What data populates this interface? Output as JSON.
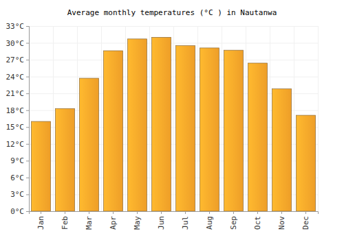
{
  "chart_data": {
    "type": "bar",
    "title": "Average monthly temperatures (°C ) in Nautanwa",
    "categories": [
      "Jan",
      "Feb",
      "Mar",
      "Apr",
      "May",
      "Jun",
      "Jul",
      "Aug",
      "Sep",
      "Oct",
      "Nov",
      "Dec"
    ],
    "values": [
      16.0,
      18.3,
      23.7,
      28.6,
      30.7,
      31.0,
      29.5,
      29.1,
      28.7,
      26.4,
      21.8,
      17.1
    ],
    "color": "#fba72a",
    "ylim": [
      0,
      33
    ],
    "yticks": [
      {
        "value": 0,
        "label": "0°C"
      },
      {
        "value": 3,
        "label": "3°C"
      },
      {
        "value": 6,
        "label": "6°C"
      },
      {
        "value": 9,
        "label": "9°C"
      },
      {
        "value": 12,
        "label": "12°C"
      },
      {
        "value": 15,
        "label": "15°C"
      },
      {
        "value": 18,
        "label": "18°C"
      },
      {
        "value": 21,
        "label": "21°C"
      },
      {
        "value": 24,
        "label": "24°C"
      },
      {
        "value": 27,
        "label": "27°C"
      },
      {
        "value": 30,
        "label": "30°C"
      },
      {
        "value": 33,
        "label": "33°C"
      }
    ],
    "grid": true
  }
}
